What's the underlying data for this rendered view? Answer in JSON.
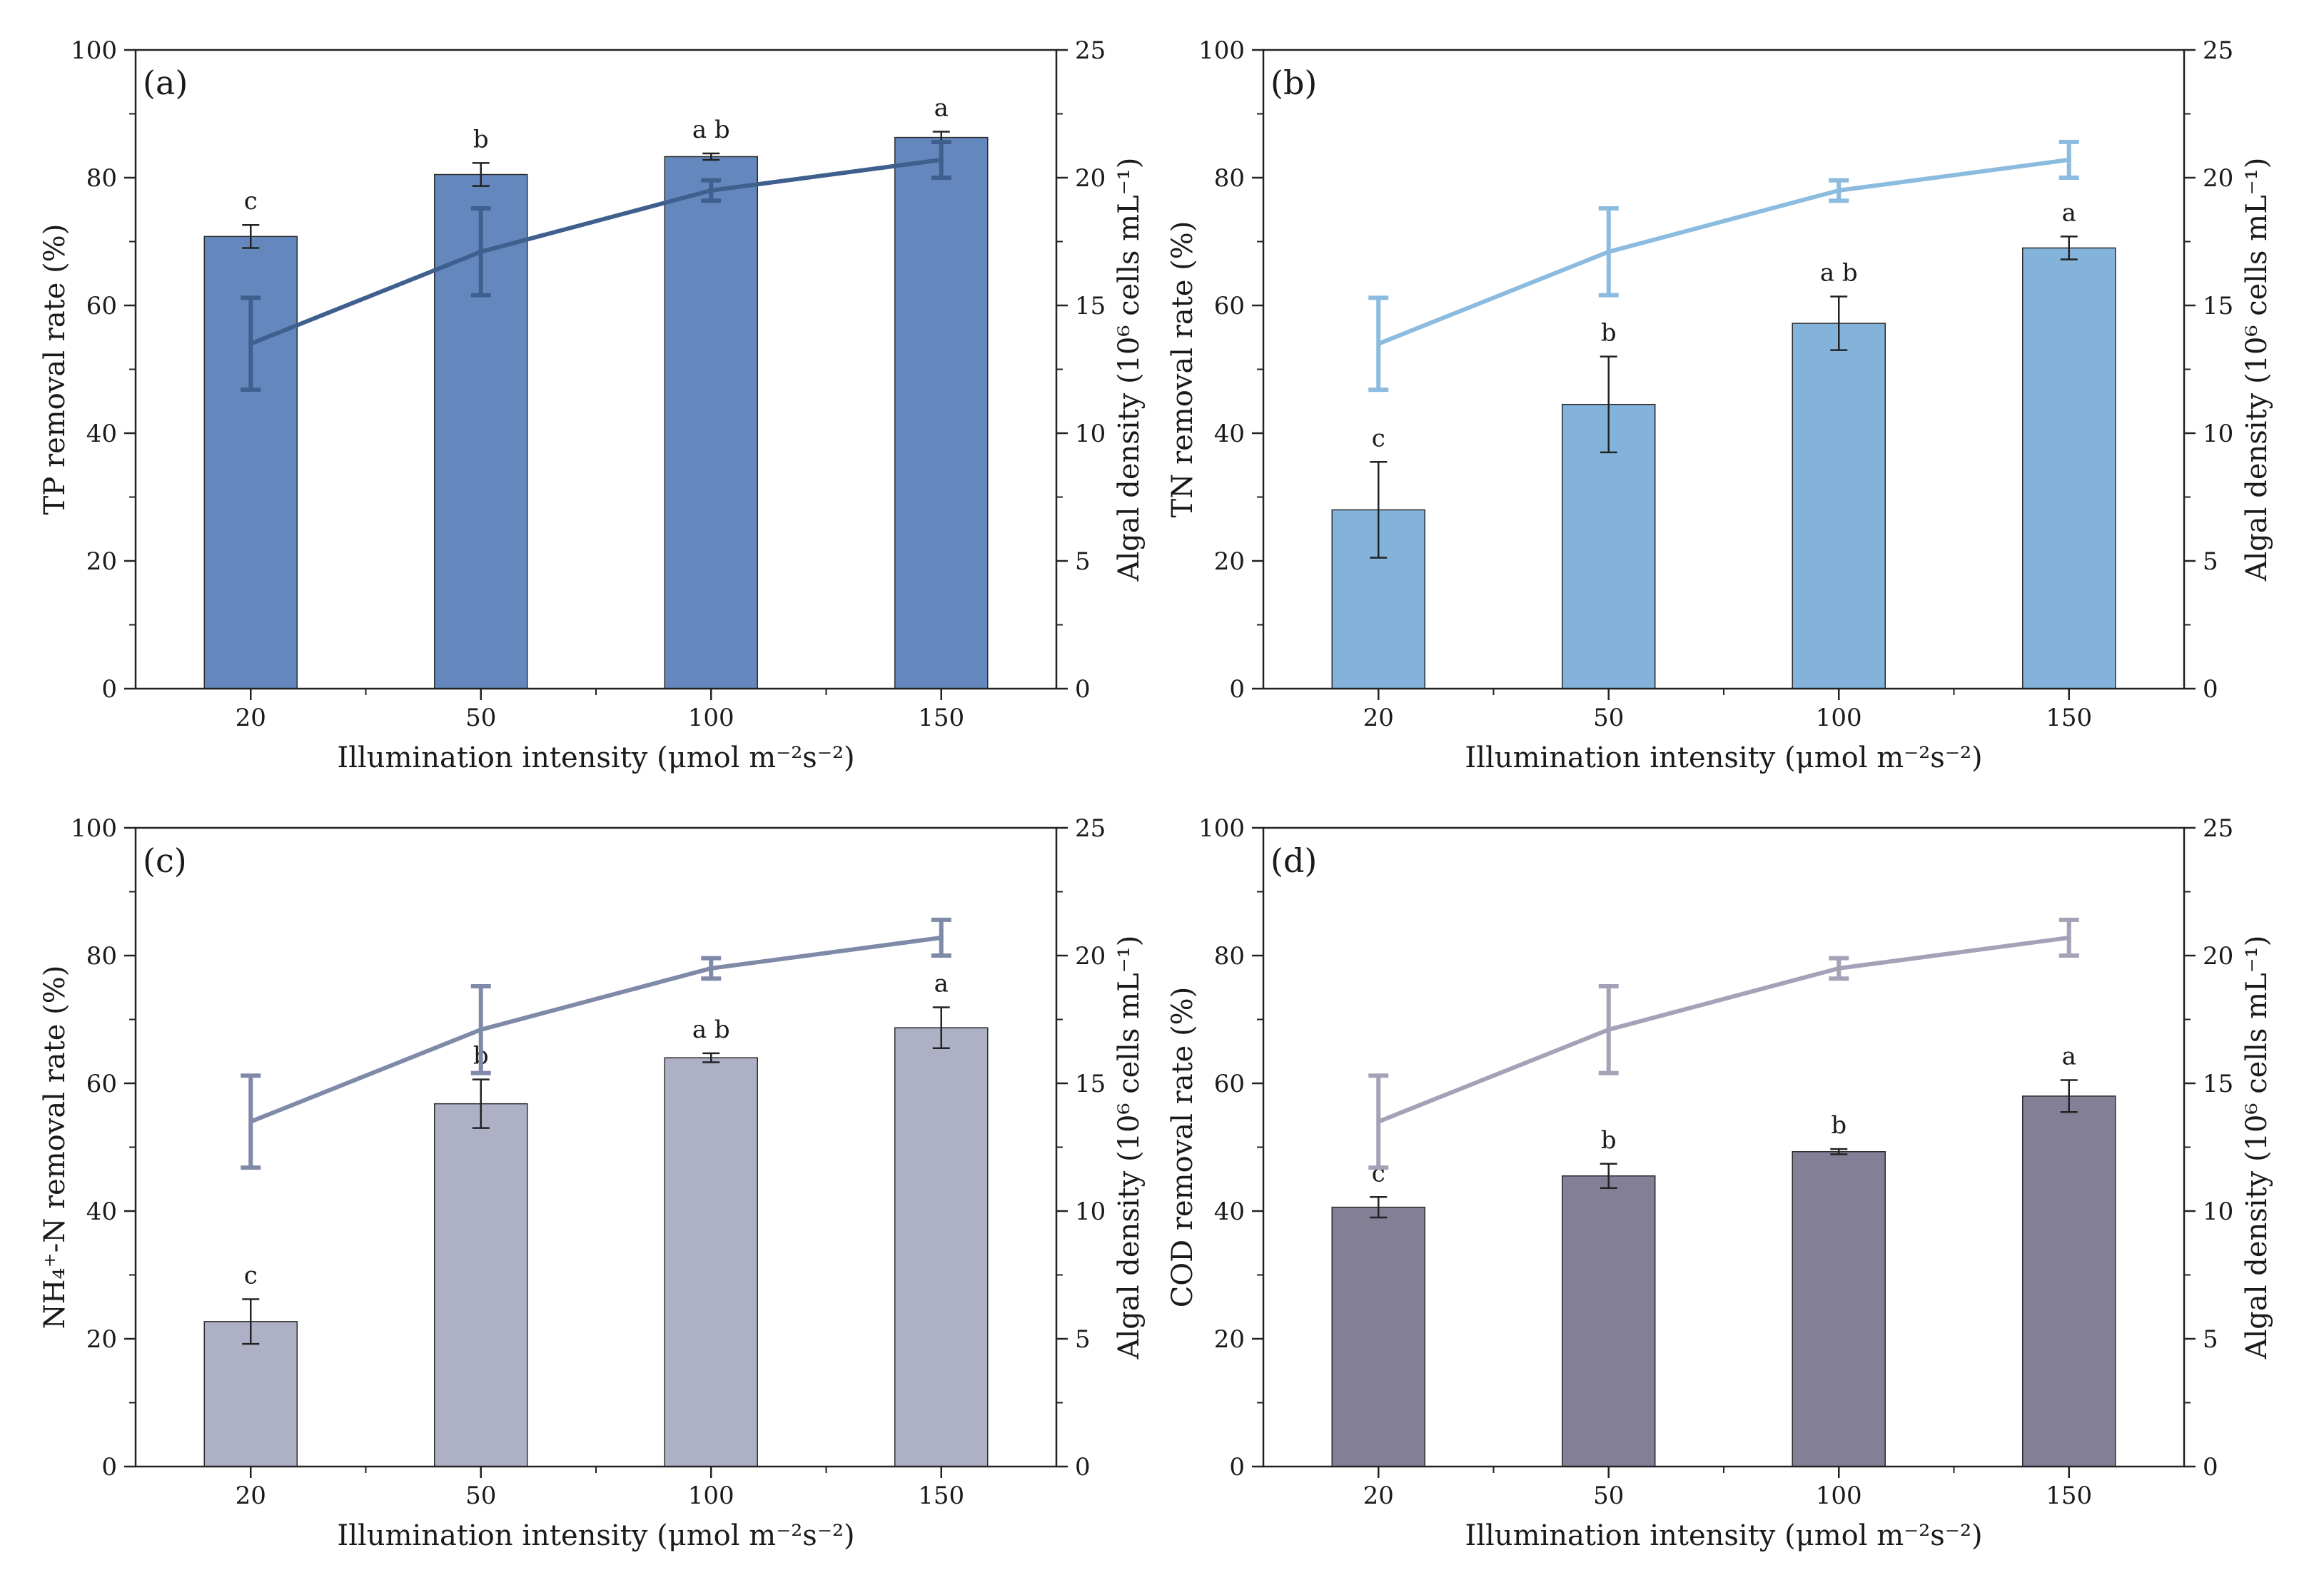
{
  "figure": {
    "x_axis_title": "Illumination intensity (μmol m⁻²s⁻²)",
    "right_axis_title": "Algal density (10⁶ cells mL⁻¹)",
    "left_ticks": [
      "0",
      "20",
      "40",
      "60",
      "80",
      "100"
    ],
    "right_ticks": [
      "0",
      "5",
      "10",
      "15",
      "20",
      "25"
    ]
  },
  "chart_data": [
    {
      "type": "bar",
      "panel_label": "(a)",
      "title": "",
      "categories": [
        "20",
        "50",
        "100",
        "150"
      ],
      "ylabel": "TP removal rate (%)",
      "ylim": [
        0,
        100
      ],
      "y2label": "Algal density (10⁶ cells mL⁻¹)",
      "y2lim": [
        0,
        25
      ],
      "bar_color": "#6488bd",
      "line_color": "#3f5f8f",
      "series": [
        {
          "name": "TP removal rate",
          "axis": "left",
          "values": [
            70.8,
            80.5,
            83.3,
            86.3
          ],
          "errors": [
            1.8,
            1.8,
            0.5,
            0.9
          ]
        },
        {
          "name": "Algal density",
          "axis": "right",
          "type": "line",
          "values": [
            13.5,
            17.1,
            19.5,
            20.7
          ],
          "errors": [
            1.8,
            1.7,
            0.4,
            0.7
          ]
        }
      ],
      "significance": [
        "c",
        "b",
        "a b",
        "a"
      ]
    },
    {
      "type": "bar",
      "panel_label": "(b)",
      "title": "",
      "categories": [
        "20",
        "50",
        "100",
        "150"
      ],
      "ylabel": "TN removal rate (%)",
      "ylim": [
        0,
        100
      ],
      "y2label": "Algal density (10⁶ cells mL⁻¹)",
      "y2lim": [
        0,
        25
      ],
      "bar_color": "#83b3db",
      "line_color": "#8cbbe0",
      "series": [
        {
          "name": "TN removal rate",
          "axis": "left",
          "values": [
            28.0,
            44.5,
            57.2,
            69.0
          ],
          "errors": [
            7.5,
            7.5,
            4.2,
            1.8
          ]
        },
        {
          "name": "Algal density",
          "axis": "right",
          "type": "line",
          "values": [
            13.5,
            17.1,
            19.5,
            20.7
          ],
          "errors": [
            1.8,
            1.7,
            0.4,
            0.7
          ]
        }
      ],
      "significance": [
        "c",
        "b",
        "a b",
        "a"
      ]
    },
    {
      "type": "bar",
      "panel_label": "(c)",
      "title": "",
      "categories": [
        "20",
        "50",
        "100",
        "150"
      ],
      "ylabel": "NH₄⁺-N removal rate (%)",
      "ylim": [
        0,
        100
      ],
      "y2label": "Algal density (10⁶ cells mL⁻¹)",
      "y2lim": [
        0,
        25
      ],
      "bar_color": "#aeb1c6",
      "line_color": "#7f8aa8",
      "series": [
        {
          "name": "NH4+-N removal rate",
          "axis": "left",
          "values": [
            22.7,
            56.8,
            64.0,
            68.7
          ],
          "errors": [
            3.5,
            3.8,
            0.7,
            3.2
          ]
        },
        {
          "name": "Algal density",
          "axis": "right",
          "type": "line",
          "values": [
            13.5,
            17.1,
            19.5,
            20.7
          ],
          "errors": [
            1.8,
            1.7,
            0.4,
            0.7
          ]
        }
      ],
      "significance": [
        "c",
        "b",
        "a b",
        "a"
      ]
    },
    {
      "type": "bar",
      "panel_label": "(d)",
      "title": "",
      "categories": [
        "20",
        "50",
        "100",
        "150"
      ],
      "ylabel": "COD removal rate (%)",
      "ylim": [
        0,
        100
      ],
      "y2label": "Algal density (10⁶ cells mL⁻¹)",
      "y2lim": [
        0,
        25
      ],
      "bar_color": "#837f96",
      "line_color": "#a5a2b7",
      "series": [
        {
          "name": "COD removal rate",
          "axis": "left",
          "values": [
            40.6,
            45.5,
            49.3,
            58.0
          ],
          "errors": [
            1.6,
            1.9,
            0.4,
            2.5
          ]
        },
        {
          "name": "Algal density",
          "axis": "right",
          "type": "line",
          "values": [
            13.5,
            17.1,
            19.5,
            20.7
          ],
          "errors": [
            1.8,
            1.7,
            0.4,
            0.7
          ]
        }
      ],
      "significance": [
        "c",
        "b",
        "b",
        "a"
      ]
    }
  ]
}
